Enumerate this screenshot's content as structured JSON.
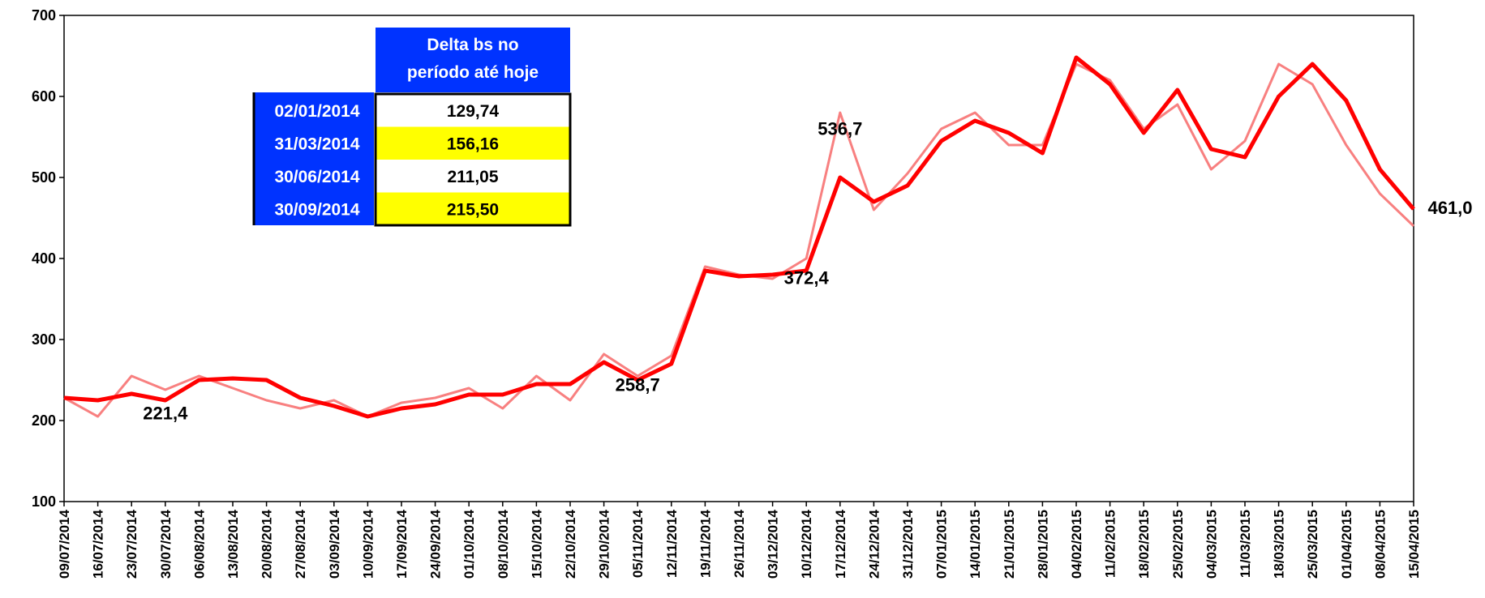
{
  "chart_data": {
    "type": "line",
    "categories": [
      "09/07/2014",
      "16/07/2014",
      "23/07/2014",
      "30/07/2014",
      "06/08/2014",
      "13/08/2014",
      "20/08/2014",
      "27/08/2014",
      "03/09/2014",
      "10/09/2014",
      "17/09/2014",
      "24/09/2014",
      "01/10/2014",
      "08/10/2014",
      "15/10/2014",
      "22/10/2014",
      "29/10/2014",
      "05/11/2014",
      "12/11/2014",
      "19/11/2014",
      "26/11/2014",
      "03/12/2014",
      "10/12/2014",
      "17/12/2014",
      "24/12/2014",
      "31/12/2014",
      "07/01/2015",
      "14/01/2015",
      "21/01/2015",
      "28/01/2015",
      "04/02/2015",
      "11/02/2015",
      "18/02/2015",
      "25/02/2015",
      "04/03/2015",
      "11/03/2015",
      "18/03/2015",
      "25/03/2015",
      "01/04/2015",
      "08/04/2015",
      "15/04/2015"
    ],
    "series": [
      {
        "color": "#f88080",
        "width": 3,
        "values": [
          228,
          205,
          255,
          238,
          255,
          240,
          225,
          215,
          225,
          205,
          222,
          228,
          240,
          215,
          255,
          225,
          282,
          255,
          280,
          390,
          380,
          375,
          400,
          580,
          460,
          505,
          560,
          580,
          540,
          540,
          640,
          620,
          560,
          590,
          510,
          545,
          640,
          615,
          540,
          480,
          440
        ]
      },
      {
        "color": "#ff0000",
        "width": 5,
        "values": [
          228,
          225,
          233,
          225,
          250,
          252,
          250,
          228,
          218,
          205,
          215,
          220,
          232,
          232,
          245,
          245,
          272,
          250,
          270,
          385,
          378,
          380,
          385,
          500,
          470,
          490,
          545,
          570,
          555,
          530,
          648,
          615,
          555,
          608,
          535,
          525,
          600,
          640,
          595,
          510,
          461
        ]
      }
    ],
    "ylim": [
      100,
      700
    ],
    "yticks": [
      100,
      200,
      300,
      400,
      500,
      600,
      700
    ],
    "annotations": [
      {
        "label": "221,4",
        "value": 221.4,
        "x": "30/07/2014"
      },
      {
        "label": "258,7",
        "value": 258.7,
        "x": "05/11/2014"
      },
      {
        "label": "372,4",
        "value": 372.4,
        "x": "10/12/2014"
      },
      {
        "label": "536,7",
        "value": 536.7,
        "x": "17/12/2014"
      },
      {
        "label": "461,0",
        "value": 461.0,
        "x": "15/04/2015"
      }
    ],
    "table": {
      "header": [
        "Delta bs no",
        "período até hoje"
      ],
      "rows": [
        [
          "02/01/2014",
          "129,74"
        ],
        [
          "31/03/2014",
          "156,16"
        ],
        [
          "30/06/2014",
          "211,05"
        ],
        [
          "30/09/2014",
          "215,50"
        ]
      ]
    }
  }
}
